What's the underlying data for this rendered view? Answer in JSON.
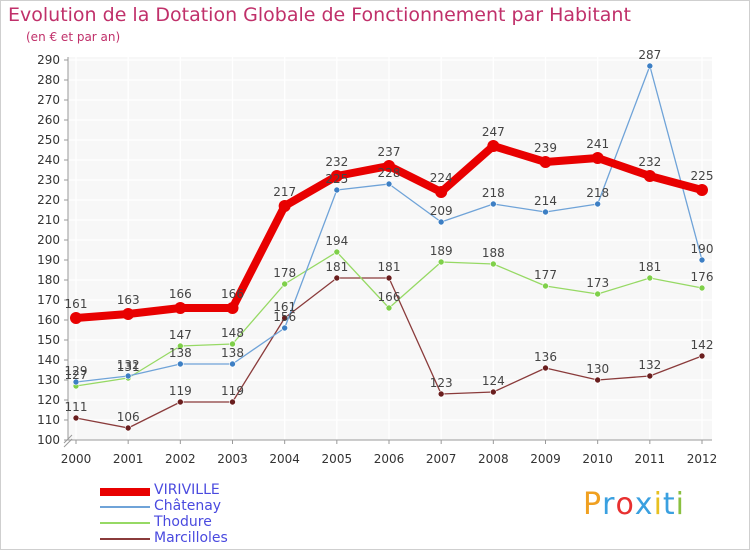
{
  "chart_data": {
    "type": "line",
    "title": "Evolution de la Dotation Globale de Fonctionnement par Habitant",
    "subtitle": "(en € et par an)",
    "xlabel": "",
    "ylabel": "",
    "ylim": [
      100,
      290
    ],
    "y_ticks": [
      100,
      110,
      120,
      130,
      140,
      150,
      160,
      170,
      180,
      190,
      200,
      210,
      220,
      230,
      240,
      250,
      260,
      270,
      280,
      290
    ],
    "categories": [
      "2000",
      "2001",
      "2002",
      "2003",
      "2004",
      "2005",
      "2006",
      "2007",
      "2008",
      "2009",
      "2010",
      "2011",
      "2012"
    ],
    "grid": true,
    "legend_position": "bottom-left",
    "series": [
      {
        "name": "VIRIVILLE",
        "color": "#e80000",
        "line_width": 8,
        "point_radius": 6,
        "values": [
          161,
          163,
          166,
          166,
          217,
          232,
          237,
          224,
          247,
          239,
          241,
          232,
          225
        ],
        "labels": [
          "161",
          "163",
          "166",
          "166",
          "217",
          "232",
          "237",
          "224",
          "247",
          "239",
          "241",
          "232",
          "225"
        ]
      },
      {
        "name": "Châtenay",
        "color": "#6fa3d8",
        "point_color": "#3d7fc4",
        "line_width": 1.3,
        "point_radius": 3,
        "values": [
          129,
          132,
          138,
          138,
          156,
          225,
          228,
          209,
          218,
          214,
          218,
          287,
          190
        ],
        "labels": [
          "129",
          "132",
          "138",
          "138",
          "156",
          "225",
          "228",
          "209",
          "218",
          "214",
          "218",
          "287",
          "190"
        ]
      },
      {
        "name": "Thodure",
        "color": "#96d964",
        "point_color": "#7fd04a",
        "line_width": 1.3,
        "point_radius": 3,
        "values": [
          127,
          131,
          147,
          148,
          178,
          194,
          166,
          189,
          188,
          177,
          173,
          181,
          176
        ],
        "labels": [
          "127",
          "131",
          "147",
          "148",
          "178",
          "194",
          "166",
          "189",
          "188",
          "177",
          "173",
          "181",
          "176"
        ]
      },
      {
        "name": "Marcilloles",
        "color": "#8a3b3b",
        "point_color": "#6a1e1e",
        "line_width": 1.3,
        "point_radius": 3,
        "values": [
          111,
          106,
          119,
          119,
          161,
          181,
          181,
          123,
          124,
          136,
          130,
          132,
          142
        ],
        "labels": [
          "111",
          "106",
          "119",
          "119",
          "161",
          "181",
          "181",
          "123",
          "124",
          "136",
          "130",
          "132",
          "142"
        ]
      }
    ]
  },
  "brand": {
    "letters": [
      "P",
      "r",
      "o",
      "x",
      "i",
      "t",
      "i"
    ],
    "colors": [
      "#f0a020",
      "#3aa0e0",
      "#e83030",
      "#3aa0e0",
      "#e8c020",
      "#3aa0e0",
      "#8ac040"
    ]
  }
}
